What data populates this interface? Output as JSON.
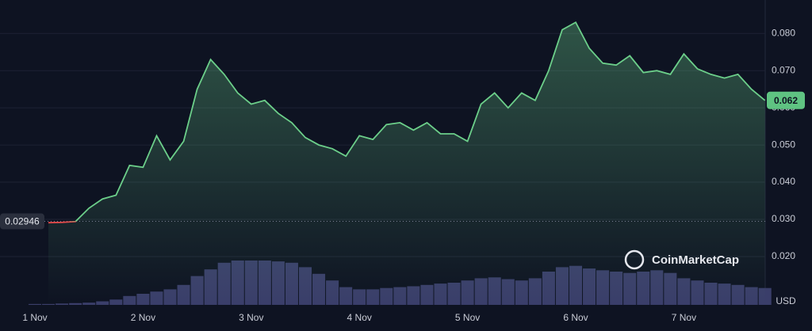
{
  "chart_data": {
    "type": "line",
    "categories": [
      "1 Nov",
      null,
      null,
      null,
      null,
      null,
      null,
      null,
      "2 Nov",
      null,
      null,
      null,
      null,
      null,
      null,
      null,
      "3 Nov",
      null,
      null,
      null,
      null,
      null,
      null,
      null,
      "4 Nov",
      null,
      null,
      null,
      null,
      null,
      null,
      null,
      "5 Nov",
      null,
      null,
      null,
      null,
      null,
      null,
      null,
      "6 Nov",
      null,
      null,
      null,
      null,
      null,
      null,
      null,
      "7 Nov",
      null,
      null,
      null,
      null,
      null,
      null
    ],
    "series": [
      {
        "name": "Price",
        "color": "#6ccf8a",
        "below_color": "#e04a4a",
        "values": [
          null,
          0.0291,
          0.0292,
          0.0294,
          0.033,
          0.0355,
          0.0365,
          0.0445,
          0.044,
          0.0525,
          0.046,
          0.051,
          0.065,
          0.073,
          0.069,
          0.064,
          0.061,
          0.062,
          0.0585,
          0.056,
          0.052,
          0.05,
          0.049,
          0.047,
          0.0525,
          0.0515,
          0.0555,
          0.056,
          0.054,
          0.056,
          0.053,
          0.053,
          0.051,
          0.061,
          0.064,
          0.06,
          0.064,
          0.062,
          0.07,
          0.081,
          0.083,
          0.076,
          0.072,
          0.0715,
          0.074,
          0.0695,
          0.07,
          0.069,
          0.0745,
          0.0705,
          0.069,
          0.068,
          0.069,
          0.065,
          0.062
        ]
      },
      {
        "name": "Volume",
        "color": "#3a3e6a",
        "axis": "y2",
        "values": [
          2,
          2,
          3,
          4,
          5,
          8,
          12,
          20,
          25,
          30,
          35,
          45,
          65,
          80,
          95,
          100,
          100,
          100,
          98,
          95,
          85,
          70,
          55,
          40,
          35,
          35,
          38,
          40,
          42,
          45,
          48,
          50,
          55,
          60,
          62,
          58,
          55,
          60,
          75,
          85,
          88,
          82,
          78,
          75,
          72,
          75,
          78,
          72,
          60,
          55,
          50,
          48,
          45,
          40,
          38
        ]
      }
    ],
    "ylim": [
      0.007,
      0.089
    ],
    "yticks": [
      {
        "value": 0.02,
        "label": "0.020"
      },
      {
        "value": 0.03,
        "label": "0.030"
      },
      {
        "value": 0.04,
        "label": "0.040"
      },
      {
        "value": 0.05,
        "label": "0.050"
      },
      {
        "value": 0.06,
        "label": "0.060"
      },
      {
        "value": 0.07,
        "label": "0.070"
      },
      {
        "value": 0.08,
        "label": "0.080"
      }
    ],
    "y2lim": [
      0,
      100
    ],
    "grid": true,
    "start_price": {
      "value": 0.02946,
      "label": "0.02946"
    },
    "current_price": {
      "value": 0.062,
      "label": "0.062"
    },
    "currency": "USD",
    "watermark": "CoinMarketCap"
  }
}
